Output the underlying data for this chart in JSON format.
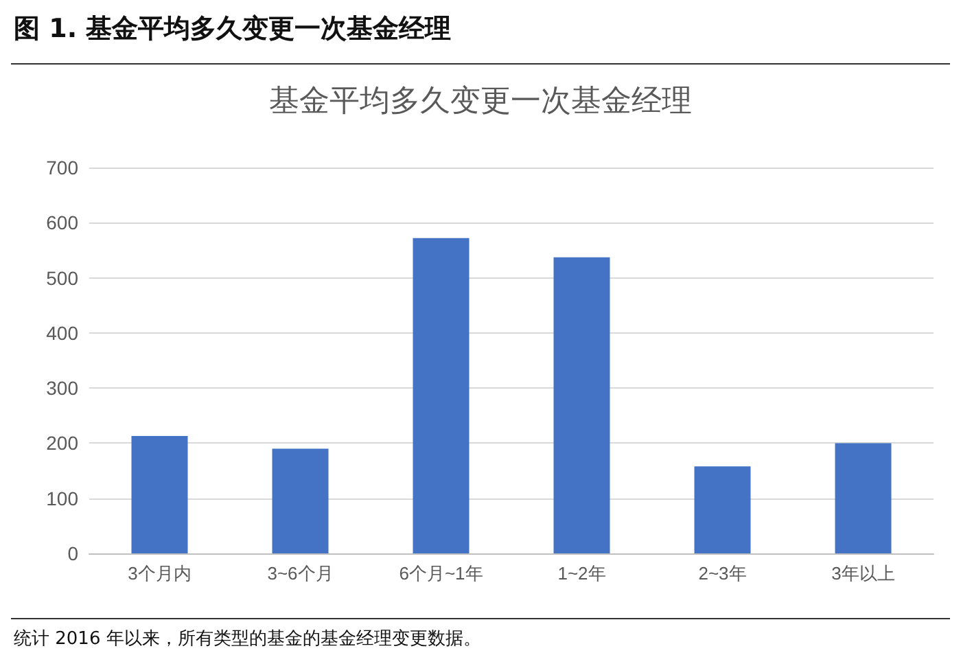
{
  "chart_data": {
    "type": "bar",
    "title": "图 1. 基金平均多久变更一次基金经理",
    "subtitle": "基金平均多久变更一次基金经理",
    "categories": [
      "3个月内",
      "3~6个月",
      "6个月~1年",
      "1~2年",
      "2~3年",
      "3年以上"
    ],
    "values": [
      213,
      190,
      572,
      537,
      158,
      200
    ],
    "color": "#4472c4",
    "ylim": [
      0,
      700
    ],
    "yticks": [
      0,
      100,
      200,
      300,
      400,
      500,
      600,
      700
    ],
    "grid": "y",
    "annotations": [
      "统计 2016 年以来，所有类型的基金的基金经理变更数据。"
    ]
  }
}
